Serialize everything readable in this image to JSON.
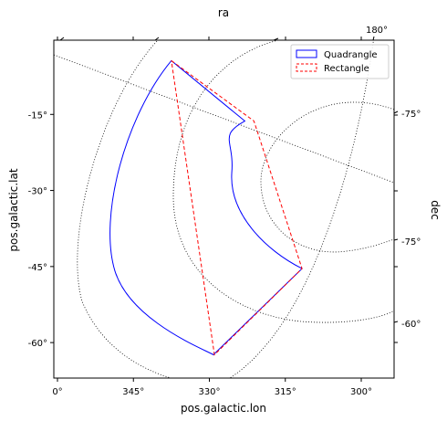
{
  "chart_data": {
    "type": "line",
    "title": "",
    "top_label": "ra",
    "xlabel": "pos.galactic.lon",
    "ylabel": "pos.galactic.lat",
    "right_label": "dec",
    "xlim": [
      0,
      -60
    ],
    "ylim": [
      -67,
      0
    ],
    "x_ticks": [
      {
        "value": 0,
        "label": "0°"
      },
      {
        "value": -15,
        "label": "345°"
      },
      {
        "value": -30,
        "label": "330°"
      },
      {
        "value": -45,
        "label": "315°"
      },
      {
        "value": -60,
        "label": "300°"
      }
    ],
    "y_ticks": [
      {
        "value": -15,
        "label": "-15°"
      },
      {
        "value": -30,
        "label": "-30°"
      },
      {
        "value": -45,
        "label": "-45°"
      },
      {
        "value": -60,
        "label": "-60°"
      }
    ],
    "top_tick_labels": [
      {
        "label": "180°"
      }
    ],
    "right_tick_labels": [
      {
        "label": "-75°"
      },
      {
        "label": "-75°"
      },
      {
        "label": "-60°"
      }
    ],
    "legend": {
      "position": "top-right",
      "entries": [
        {
          "name": "Quadrangle",
          "color": "#0000ff",
          "style": "solid"
        },
        {
          "name": "Rectangle",
          "color": "#ff0000",
          "style": "dashed"
        }
      ]
    },
    "series": [
      {
        "name": "Quadrangle",
        "color": "#0000ff",
        "style": "solid",
        "x": [
          -22.5,
          -28.0,
          -32.3,
          -33.0,
          -31.0,
          -27.0,
          -30.8,
          -37.0,
          -42.4,
          -48.3,
          -41.2,
          -37.3,
          -35.3,
          -37.6,
          -39.0,
          -42.4,
          -48.3,
          -38.3,
          -30.8
        ],
        "y": [
          -4.4,
          -7.9,
          -11.4,
          -13.1,
          -16.5,
          -23.8,
          -16.5,
          -14.2,
          -16.3,
          -45.4,
          -49.4,
          -45.0,
          -37.2,
          -25.0,
          -20.5,
          -16.3,
          -45.4,
          -60.0,
          -62.4
        ],
        "note": "closed outline; outer arc from (-22.5,-4.4) bulging to x~-11 then to (-30.8,-62.4)"
      },
      {
        "name": "Rectangle",
        "color": "#ff0000",
        "style": "dashed",
        "x": [
          -22.5,
          -38.8,
          -48.3,
          -31.0,
          -22.5
        ],
        "y": [
          -4.4,
          -16.3,
          -45.4,
          -62.4,
          -4.4
        ]
      }
    ]
  }
}
